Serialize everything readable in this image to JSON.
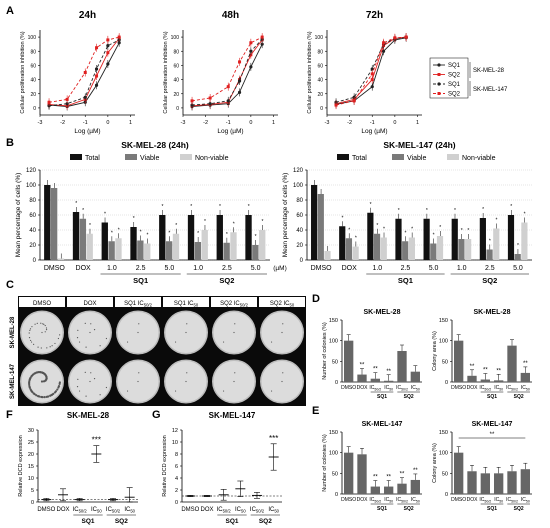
{
  "panel_letters": [
    "A",
    "B",
    "C",
    "D",
    "E",
    "F",
    "G"
  ],
  "colors": {
    "sq1": "#222222",
    "sq2": "#e02020",
    "total": "#111111",
    "viable": "#7a7a7a",
    "nonviable": "#d0d0d0",
    "colony_bar": "#666666",
    "well_bg": "#bdbdbd",
    "well": "#dcdcdc",
    "panelC_bg": "#0a0a0a"
  },
  "panelA_legend": {
    "entries": [
      "SQ1",
      "SQ2",
      "SQ1",
      "SQ2"
    ],
    "groups": [
      "SK-MEL-28",
      "SK-MEL-147"
    ]
  },
  "panelB_legend": [
    "Total",
    "Viable",
    "Non-viable"
  ],
  "panelC": {
    "columns": [
      "DMSO",
      "DOX",
      "SQ1 IC50/2",
      "SQ1 IC50",
      "SQ2 IC50/2",
      "SQ2 IC50"
    ],
    "rows": [
      "SK-MEL-28",
      "SK-MEL-147"
    ]
  },
  "chart_data": [
    {
      "panel": "A",
      "type": "line",
      "title": "24h",
      "xlabel": "Log (µM)",
      "ylabel": "Cellular proliferation inhibition (%)",
      "xlim": [
        -3,
        1.2
      ],
      "ylim": [
        -10,
        110
      ],
      "xticks": [
        -3,
        -2,
        -1,
        0,
        1
      ],
      "yticks": [
        0,
        20,
        40,
        60,
        80,
        100
      ],
      "grid": false,
      "series": [
        {
          "name": "SQ1",
          "cell_line": "SK-MEL-28",
          "x": [
            -2.6,
            -1.8,
            -1,
            -0.5,
            0,
            0.5
          ],
          "y": [
            4,
            2,
            8,
            32,
            62,
            92
          ]
        },
        {
          "name": "SQ2",
          "cell_line": "SK-MEL-28",
          "x": [
            -2.6,
            -1.8,
            -1,
            -0.5,
            0,
            0.5
          ],
          "y": [
            5,
            3,
            12,
            45,
            78,
            98
          ]
        },
        {
          "name": "SQ1",
          "cell_line": "SK-MEL-147",
          "x": [
            -2.6,
            -1.8,
            -1,
            -0.5,
            0,
            0.5
          ],
          "y": [
            3,
            6,
            15,
            55,
            88,
            96
          ]
        },
        {
          "name": "SQ2",
          "cell_line": "SK-MEL-147",
          "x": [
            -2.6,
            -1.8,
            -1,
            -0.5,
            0,
            0.5
          ],
          "y": [
            8,
            12,
            50,
            85,
            96,
            100
          ]
        }
      ]
    },
    {
      "panel": "A",
      "type": "line",
      "title": "48h",
      "xlabel": "Log (µM)",
      "ylabel": "Cellular proliferation inhibition (%)",
      "xlim": [
        -3,
        1.2
      ],
      "ylim": [
        -10,
        110
      ],
      "xticks": [
        -3,
        -2,
        -1,
        0,
        1
      ],
      "yticks": [
        0,
        20,
        40,
        60,
        80,
        100
      ],
      "grid": false,
      "series": [
        {
          "name": "SQ1",
          "cell_line": "SK-MEL-28",
          "x": [
            -2.6,
            -1.8,
            -1,
            -0.5,
            0,
            0.5
          ],
          "y": [
            2,
            4,
            6,
            22,
            58,
            90
          ]
        },
        {
          "name": "SQ2",
          "cell_line": "SK-MEL-28",
          "x": [
            -2.6,
            -1.8,
            -1,
            -0.5,
            0,
            0.5
          ],
          "y": [
            3,
            5,
            8,
            40,
            75,
            96
          ]
        },
        {
          "name": "SQ1",
          "cell_line": "SK-MEL-147",
          "x": [
            -2.6,
            -1.8,
            -1,
            -0.5,
            0,
            0.5
          ],
          "y": [
            4,
            6,
            10,
            38,
            80,
            97
          ]
        },
        {
          "name": "SQ2",
          "cell_line": "SK-MEL-147",
          "x": [
            -2.6,
            -1.8,
            -1,
            -0.5,
            0,
            0.5
          ],
          "y": [
            10,
            14,
            30,
            65,
            92,
            100
          ]
        }
      ]
    },
    {
      "panel": "A",
      "type": "line",
      "title": "72h",
      "xlabel": "Log (µM)",
      "ylabel": "Cellular proliferation inhibition (%)",
      "xlim": [
        -3,
        1.2
      ],
      "ylim": [
        -10,
        110
      ],
      "xticks": [
        -3,
        -2,
        -1,
        0,
        1
      ],
      "yticks": [
        0,
        20,
        40,
        60,
        80,
        100
      ],
      "grid": false,
      "series": [
        {
          "name": "SQ1",
          "cell_line": "SK-MEL-28",
          "x": [
            -2.6,
            -1.8,
            -1,
            -0.5,
            0,
            0.5
          ],
          "y": [
            5,
            10,
            30,
            80,
            96,
            99
          ]
        },
        {
          "name": "SQ2",
          "cell_line": "SK-MEL-28",
          "x": [
            -2.6,
            -1.8,
            -1,
            -0.5,
            0,
            0.5
          ],
          "y": [
            6,
            12,
            40,
            88,
            98,
            100
          ]
        },
        {
          "name": "SQ1",
          "cell_line": "SK-MEL-147",
          "x": [
            -2.6,
            -1.8,
            -1,
            -0.5,
            0,
            0.5
          ],
          "y": [
            8,
            15,
            55,
            90,
            98,
            100
          ]
        },
        {
          "name": "SQ2",
          "cell_line": "SK-MEL-147",
          "x": [
            -2.6,
            -1.8,
            -1,
            -0.5,
            0,
            0.5
          ],
          "y": [
            4,
            10,
            48,
            92,
            99,
            100
          ]
        }
      ]
    },
    {
      "panel": "B",
      "type": "bar",
      "title": "SK-MEL-28 (24h)",
      "ylabel": "Mean percentage of cells (%)",
      "ylim": [
        0,
        120
      ],
      "yticks": [
        0,
        20,
        40,
        60,
        80,
        100,
        120
      ],
      "categories": [
        "DMSO",
        "DOX",
        "1.0",
        "2.5",
        "5.0",
        "1.0",
        "2.5",
        "5.0"
      ],
      "groups": [
        {
          "label": "SQ1",
          "from": 2,
          "to": 4
        },
        {
          "label": "SQ2",
          "from": 5,
          "to": 7
        }
      ],
      "unit_label": "(µM)",
      "grid": true,
      "series": [
        {
          "name": "Total",
          "values": [
            100,
            64,
            50,
            44,
            60,
            60,
            60,
            60
          ]
        },
        {
          "name": "Viable",
          "values": [
            96,
            55,
            25,
            26,
            25,
            24,
            23,
            20
          ]
        },
        {
          "name": "Non-viable",
          "values": [
            2,
            35,
            29,
            22,
            35,
            40,
            37,
            40
          ]
        }
      ]
    },
    {
      "panel": "B",
      "type": "bar",
      "title": "SK-MEL-147 (24h)",
      "ylabel": "Mean percentage of cells (%)",
      "ylim": [
        0,
        120
      ],
      "yticks": [
        0,
        20,
        40,
        60,
        80,
        100,
        120
      ],
      "categories": [
        "DMSO",
        "DOX",
        "1.0",
        "2.5",
        "5.0",
        "1.0",
        "2.5",
        "5.0"
      ],
      "groups": [
        {
          "label": "SQ1",
          "from": 2,
          "to": 4
        },
        {
          "label": "SQ2",
          "from": 5,
          "to": 7
        }
      ],
      "grid": true,
      "series": [
        {
          "name": "Total",
          "values": [
            100,
            45,
            63,
            55,
            55,
            55,
            56,
            60
          ]
        },
        {
          "name": "Viable",
          "values": [
            88,
            29,
            35,
            25,
            22,
            28,
            14,
            8
          ]
        },
        {
          "name": "Non-viable",
          "values": [
            12,
            18,
            30,
            30,
            32,
            28,
            42,
            50
          ]
        }
      ]
    },
    {
      "panel": "D",
      "type": "bar",
      "title": "SK-MEL-28",
      "ylabel": "Number of colonies (%)",
      "ylim": [
        0,
        150
      ],
      "yticks": [
        0,
        50,
        100,
        150
      ],
      "categories": [
        "DMSO",
        "DOX",
        "IC50/2",
        "IC50",
        "IC50/2",
        "IC50"
      ],
      "groups": [
        {
          "label": "SQ1",
          "from": 2,
          "to": 3
        },
        {
          "label": "SQ2",
          "from": 4,
          "to": 5
        }
      ],
      "significance": [
        "",
        "**",
        "**",
        "**",
        "",
        ""
      ],
      "values": [
        100,
        18,
        8,
        3,
        75,
        25
      ]
    },
    {
      "panel": "D",
      "type": "bar",
      "title": "SK-MEL-28",
      "ylabel": "Colony area (%)",
      "ylim": [
        0,
        150
      ],
      "yticks": [
        0,
        50,
        100,
        150
      ],
      "categories": [
        "DMSO",
        "DOX",
        "IC50/2",
        "IC50",
        "IC50/2",
        "IC50"
      ],
      "groups": [
        {
          "label": "SQ1",
          "from": 2,
          "to": 3
        },
        {
          "label": "SQ2",
          "from": 4,
          "to": 5
        }
      ],
      "significance": [
        "",
        "**",
        "**",
        "**",
        "",
        "**"
      ],
      "values": [
        100,
        15,
        6,
        4,
        88,
        22
      ]
    },
    {
      "panel": "E",
      "type": "bar",
      "title": "SK-MEL-147",
      "ylabel": "Number of colonies (%)",
      "ylim": [
        0,
        150
      ],
      "yticks": [
        0,
        50,
        100,
        150
      ],
      "categories": [
        "DMSO",
        "DOX",
        "IC50/2",
        "IC50",
        "IC50/2",
        "IC50"
      ],
      "groups": [
        {
          "label": "SQ1",
          "from": 2,
          "to": 3
        },
        {
          "label": "SQ2",
          "from": 4,
          "to": 5
        }
      ],
      "significance": [
        "",
        "",
        "**",
        "**",
        "**",
        "**"
      ],
      "values": [
        100,
        96,
        18,
        18,
        25,
        34
      ]
    },
    {
      "panel": "E",
      "type": "bar",
      "title": "SK-MEL-147",
      "ylabel": "Colony area (%)",
      "ylim": [
        0,
        150
      ],
      "yticks": [
        0,
        50,
        100,
        150
      ],
      "categories": [
        "DMSO",
        "DOX",
        "IC50/2",
        "IC50",
        "IC50/2",
        "IC50"
      ],
      "groups": [
        {
          "label": "SQ1",
          "from": 2,
          "to": 3
        },
        {
          "label": "SQ2",
          "from": 4,
          "to": 5
        }
      ],
      "bracket_label": "**",
      "values": [
        100,
        55,
        50,
        50,
        55,
        60
      ]
    },
    {
      "panel": "F",
      "type": "scatter",
      "title": "SK-MEL-28",
      "ylabel": "Relative DCD expression",
      "ylim": [
        0,
        30
      ],
      "yticks": [
        0,
        5,
        10,
        15,
        20,
        25,
        30
      ],
      "categories": [
        "DMSO",
        "DOX",
        "IC50/2",
        "IC50",
        "IC50/2",
        "IC50"
      ],
      "groups": [
        {
          "label": "SQ1",
          "from": 2,
          "to": 3
        },
        {
          "label": "SQ2",
          "from": 4,
          "to": 5
        }
      ],
      "reference_line": 1,
      "significance": [
        "",
        "",
        "",
        "***",
        "",
        ""
      ],
      "values": [
        1,
        3,
        1,
        20,
        1,
        2
      ],
      "errors": [
        0.5,
        2.5,
        0.5,
        3.5,
        0.5,
        4
      ]
    },
    {
      "panel": "G",
      "type": "scatter",
      "title": "SK-MEL-147",
      "ylabel": "Relative DCD expression",
      "ylim": [
        0,
        12
      ],
      "yticks": [
        0,
        2,
        4,
        6,
        8,
        10,
        12
      ],
      "categories": [
        "DMSO",
        "DOX",
        "IC50/2",
        "IC50",
        "IC50/2",
        "IC50"
      ],
      "groups": [
        {
          "label": "SQ1",
          "from": 2,
          "to": 3
        },
        {
          "label": "SQ2",
          "from": 4,
          "to": 5
        }
      ],
      "reference_line": 1,
      "significance": [
        "",
        "",
        "",
        "",
        "",
        "***"
      ],
      "values": [
        1,
        1,
        1.2,
        2.2,
        1.1,
        7.5
      ],
      "errors": [
        0.1,
        0.1,
        0.9,
        1.3,
        0.5,
        2.2
      ]
    }
  ]
}
